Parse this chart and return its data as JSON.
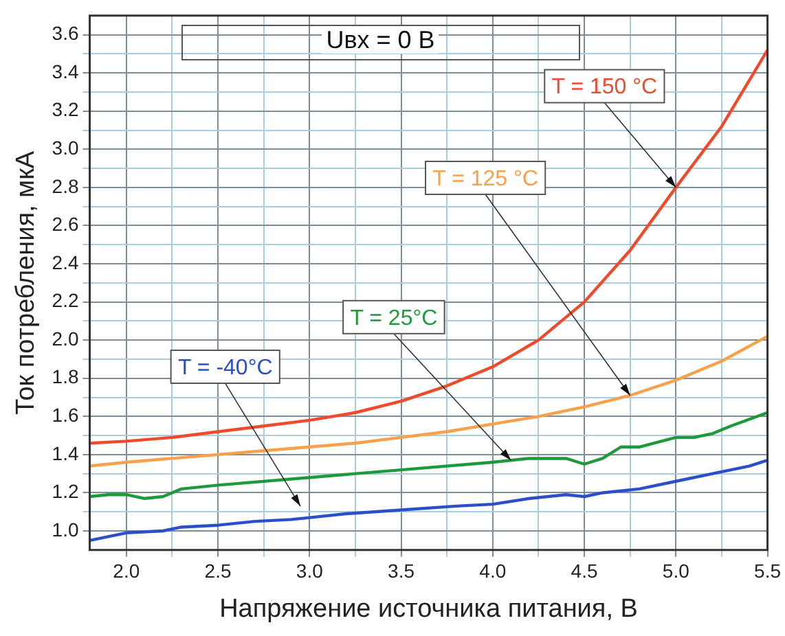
{
  "chart_data": {
    "type": "line",
    "xlabel": "Напряжение источника питания, В",
    "ylabel": "Ток потребления, мкА",
    "x": [
      1.8,
      2.0,
      2.25,
      2.5,
      2.75,
      3.0,
      3.25,
      3.5,
      3.75,
      4.0,
      4.25,
      4.5,
      4.75,
      5.0,
      5.25,
      5.5
    ],
    "series": [
      {
        "name": "T = 150 °C",
        "color": "#f04a2a",
        "values": [
          1.46,
          1.47,
          1.49,
          1.52,
          1.55,
          1.58,
          1.62,
          1.68,
          1.76,
          1.86,
          2.0,
          2.2,
          2.47,
          2.8,
          3.12,
          3.52
        ]
      },
      {
        "name": "T = 125 °C",
        "color": "#f9a04a",
        "values": [
          1.34,
          1.36,
          1.38,
          1.4,
          1.42,
          1.44,
          1.46,
          1.49,
          1.52,
          1.56,
          1.6,
          1.65,
          1.71,
          1.79,
          1.89,
          2.02
        ]
      },
      {
        "name": "T = 25°C",
        "color": "#1e9a3c",
        "x": [
          1.8,
          1.9,
          2.0,
          2.1,
          2.2,
          2.3,
          2.5,
          3.0,
          3.5,
          4.0,
          4.2,
          4.4,
          4.5,
          4.6,
          4.7,
          4.8,
          5.0,
          5.1,
          5.2,
          5.3,
          5.5
        ],
        "values": [
          1.18,
          1.19,
          1.19,
          1.17,
          1.18,
          1.22,
          1.24,
          1.28,
          1.32,
          1.36,
          1.38,
          1.38,
          1.35,
          1.38,
          1.44,
          1.44,
          1.49,
          1.49,
          1.51,
          1.55,
          1.62
        ]
      },
      {
        "name": "T = -40°C",
        "color": "#2a4fc8",
        "x": [
          1.8,
          2.0,
          2.2,
          2.3,
          2.5,
          2.7,
          2.9,
          3.0,
          3.2,
          3.5,
          3.8,
          4.0,
          4.2,
          4.4,
          4.5,
          4.6,
          4.8,
          5.0,
          5.2,
          5.4,
          5.5
        ],
        "values": [
          0.95,
          0.99,
          1.0,
          1.02,
          1.03,
          1.05,
          1.06,
          1.07,
          1.09,
          1.11,
          1.13,
          1.14,
          1.17,
          1.19,
          1.18,
          1.2,
          1.22,
          1.26,
          1.3,
          1.34,
          1.37
        ]
      }
    ],
    "annotations": [
      "Uвх = 0 В"
    ],
    "xlim": [
      1.8,
      5.5
    ],
    "xticks": [
      {
        "value": 2,
        "label": "2.0"
      },
      {
        "value": 2.25,
        "label": null
      },
      {
        "value": 2.5,
        "label": "2.5"
      },
      {
        "value": 2.75,
        "label": null
      },
      {
        "value": 3,
        "label": "3.0"
      },
      {
        "value": 3.25,
        "label": null
      },
      {
        "value": 3.5,
        "label": "3.5"
      },
      {
        "value": 3.75,
        "label": null
      },
      {
        "value": 4,
        "label": "4.0"
      },
      {
        "value": 4.25,
        "label": null
      },
      {
        "value": 4.5,
        "label": "4.5"
      },
      {
        "value": 4.75,
        "label": null
      },
      {
        "value": 5,
        "label": "5.0"
      },
      {
        "value": 5.25,
        "label": null
      },
      {
        "value": 5.5,
        "label": "5.5"
      }
    ],
    "ylim": [
      0.9,
      3.7
    ],
    "yticks": [
      {
        "value": 1,
        "label": "1.0"
      },
      {
        "value": 1.1,
        "label": null
      },
      {
        "value": 1.2,
        "label": "1.2"
      },
      {
        "value": 1.3,
        "label": null
      },
      {
        "value": 1.4,
        "label": "1.4"
      },
      {
        "value": 1.5,
        "label": null
      },
      {
        "value": 1.6,
        "label": "1.6"
      },
      {
        "value": 1.7,
        "label": null
      },
      {
        "value": 1.8,
        "label": "1.8"
      },
      {
        "value": 1.9,
        "label": null
      },
      {
        "value": 2,
        "label": "2.0"
      },
      {
        "value": 2.1,
        "label": null
      },
      {
        "value": 2.2,
        "label": "2.2"
      },
      {
        "value": 2.3,
        "label": null
      },
      {
        "value": 2.4,
        "label": "2.4"
      },
      {
        "value": 2.5,
        "label": null
      },
      {
        "value": 2.6,
        "label": "2.6"
      },
      {
        "value": 2.7,
        "label": null
      },
      {
        "value": 2.8,
        "label": "2.8"
      },
      {
        "value": 2.9,
        "label": null
      },
      {
        "value": 3,
        "label": "3.0"
      },
      {
        "value": 3.1,
        "label": null
      },
      {
        "value": 3.2,
        "label": "3.2"
      },
      {
        "value": 3.3,
        "label": null
      },
      {
        "value": 3.4,
        "label": "3.4"
      },
      {
        "value": 3.5,
        "label": null
      },
      {
        "value": 3.6,
        "label": "3.6"
      }
    ],
    "grid": true,
    "legend": false,
    "marker": "none",
    "line_style": "solid"
  }
}
